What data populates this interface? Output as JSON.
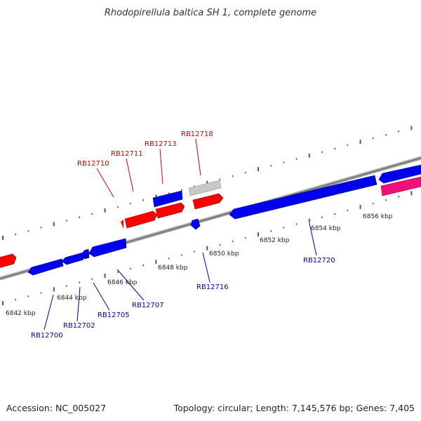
{
  "title": "Rhodopirellula baltica SH 1, complete genome",
  "footer": {
    "accession": "Accession: NC_005027",
    "summary": "Topology: circular; Length: 7,145,576 bp; Genes: 7,405"
  },
  "colors": {
    "forward": "#ff0000",
    "reverse": "#0000ee",
    "rna": "#ee1177",
    "other": "#c0c0c0",
    "tick": "#2a7a2a",
    "backbone": "#888888",
    "label_forward": "#cc0000",
    "label_reverse": "#000099"
  },
  "scale_labels": [
    "6842 kbp",
    "6844 kbp",
    "6846 kbp",
    "6848 kbp",
    "6850 kbp",
    "6852 kbp",
    "6854 kbp",
    "6856 kbp"
  ],
  "genes_forward": [
    "RB12710",
    "RB12711",
    "RB12713",
    "RB12718"
  ],
  "genes_reverse": [
    "RB12700",
    "RB12702",
    "RB12705",
    "RB12707",
    "RB12716",
    "RB12720"
  ]
}
